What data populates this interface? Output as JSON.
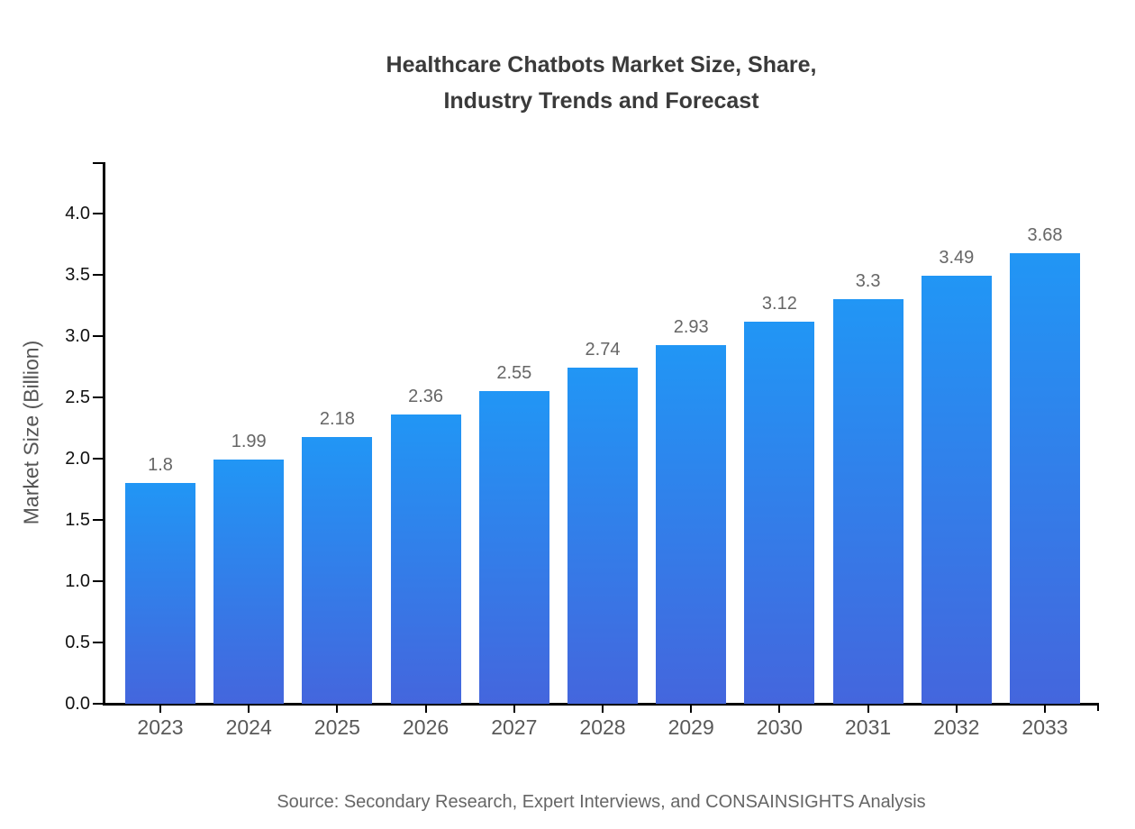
{
  "title": {
    "line1": "Healthcare Chatbots Market Size, Share,",
    "line2": "Industry Trends and Forecast"
  },
  "source_note": "Source: Secondary Research, Expert Interviews, and CONSAINSIGHTS Analysis",
  "chart_data": {
    "type": "bar",
    "title": "Healthcare Chatbots Market Size, Share, Industry Trends and Forecast",
    "categories": [
      "2023",
      "2024",
      "2025",
      "2026",
      "2027",
      "2028",
      "2029",
      "2030",
      "2031",
      "2032",
      "2033"
    ],
    "values": [
      1.8,
      1.99,
      2.18,
      2.36,
      2.55,
      2.74,
      2.93,
      3.12,
      3.3,
      3.49,
      3.68
    ],
    "value_labels": [
      "1.8",
      "1.99",
      "2.18",
      "2.36",
      "2.55",
      "2.74",
      "2.93",
      "3.12",
      "3.3",
      "3.49",
      "3.68"
    ],
    "xlabel": "",
    "ylabel": "Market Size (Billion)",
    "ylim": [
      0,
      4.42
    ],
    "yticks": [
      0.0,
      0.5,
      1.0,
      1.5,
      2.0,
      2.5,
      3.0,
      3.5,
      4.0
    ],
    "ytick_labels": [
      "0.0",
      "0.5",
      "1.0",
      "1.5",
      "2.0",
      "2.5",
      "3.0",
      "3.5",
      "4.0"
    ],
    "grid": false,
    "legend": null,
    "bar_color_top": "#2196f5",
    "bar_color_bottom": "#4466dd"
  },
  "colors": {
    "background": "#ffffff",
    "title_text": "#3a3a3a",
    "axis_line": "#000000",
    "ytick_label_text": "#111111",
    "xtick_label_text": "#595959",
    "bar_value_label_text": "#666666",
    "y_axis_title_text": "#555555",
    "source_text": "#666666"
  }
}
